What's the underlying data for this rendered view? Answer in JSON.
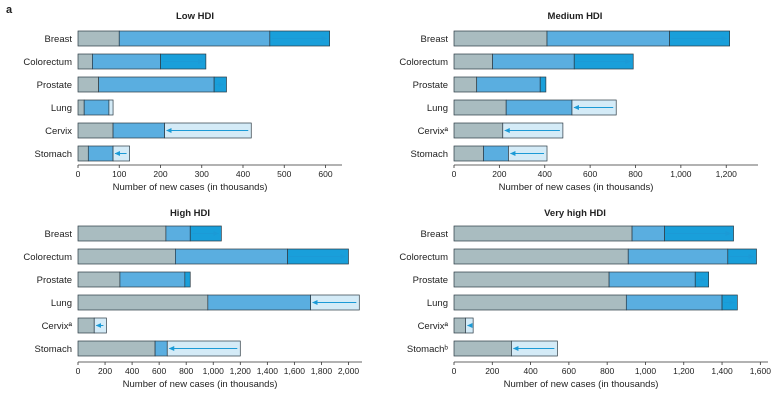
{
  "panel_letter": "a",
  "colors": {
    "seg1_fill": "#a9bcc0",
    "seg2_fill": "#5aaee0",
    "seg3_fill": "#199fda",
    "seg3_light_fill": "#d4ebf7",
    "bar_stroke": "#2b3a44",
    "arrow": "#1b9ad6",
    "axis": "#333333"
  },
  "chart_data": [
    {
      "type": "bar",
      "orientation": "horizontal",
      "title": "Low HDI",
      "categories": [
        "Breast",
        "Colorectum",
        "Prostate",
        "Lung",
        "Cervix",
        "Stomach"
      ],
      "segments": [
        [
          100,
          465,
          610
        ],
        [
          35,
          200,
          310
        ],
        [
          50,
          330,
          360
        ],
        [
          15,
          75,
          85
        ],
        [
          85,
          210,
          420
        ],
        [
          25,
          85,
          125
        ]
      ],
      "arrow_direction": [
        "right",
        "right",
        "right",
        "left",
        "left",
        "left"
      ],
      "xlabel": "Number of new cases (in thousands)",
      "xlim": [
        0,
        640
      ],
      "xticks": [
        0,
        100,
        200,
        300,
        400,
        500,
        600
      ],
      "xtick_labels": [
        "0",
        "100",
        "200",
        "300",
        "400",
        "500",
        "600"
      ],
      "grid": false
    },
    {
      "type": "bar",
      "orientation": "horizontal",
      "title": "Medium HDI",
      "categories": [
        "Breast",
        "Colorectum",
        "Prostate",
        "Lung",
        "Cervixª",
        "Stomach"
      ],
      "segments": [
        [
          410,
          950,
          1215
        ],
        [
          170,
          530,
          790
        ],
        [
          100,
          380,
          405
        ],
        [
          230,
          520,
          715
        ],
        [
          215,
          215,
          480
        ],
        [
          130,
          240,
          410
        ]
      ],
      "arrow_direction": [
        "right",
        "right",
        "right",
        "left",
        "left",
        "left"
      ],
      "xlabel": "Number of new cases (in thousands)",
      "xlim": [
        0,
        1340
      ],
      "xticks": [
        0,
        200,
        400,
        600,
        800,
        1000,
        1200
      ],
      "xtick_labels": [
        "0",
        "200",
        "400",
        "600",
        "800",
        "1,000",
        "1,200"
      ],
      "grid": false
    },
    {
      "type": "bar",
      "orientation": "horizontal",
      "title": "High HDI",
      "categories": [
        "Breast",
        "Colorectum",
        "Prostate",
        "Lung",
        "Cervixª",
        "Stomach"
      ],
      "segments": [
        [
          650,
          830,
          1060
        ],
        [
          720,
          1550,
          2000
        ],
        [
          310,
          790,
          830
        ],
        [
          960,
          1720,
          2080
        ],
        [
          120,
          120,
          210
        ],
        [
          570,
          660,
          1200
        ]
      ],
      "arrow_direction": [
        "right",
        "right",
        "right",
        "left",
        "left",
        "left"
      ],
      "xlabel": "Number of new cases (in thousands)",
      "xlim": [
        0,
        2100
      ],
      "xticks": [
        0,
        200,
        400,
        600,
        800,
        1000,
        1200,
        1400,
        1600,
        1800,
        2000
      ],
      "xtick_labels": [
        "0",
        "200",
        "400",
        "600",
        "800",
        "1,000",
        "1,200",
        "1,400",
        "1,600",
        "1,800",
        "2,000"
      ],
      "grid": false
    },
    {
      "type": "bar",
      "orientation": "horizontal",
      "title": "Very high HDI",
      "categories": [
        "Breast",
        "Colorectum",
        "Prostate",
        "Lung",
        "Cervixª",
        "Stomachᵇ"
      ],
      "segments": [
        [
          930,
          1100,
          1460
        ],
        [
          910,
          1430,
          1580
        ],
        [
          810,
          1260,
          1330
        ],
        [
          900,
          1400,
          1480
        ],
        [
          60,
          60,
          100
        ],
        [
          300,
          300,
          540
        ]
      ],
      "arrow_direction": [
        "right",
        "right",
        "right",
        "right",
        "left",
        "left"
      ],
      "xlabel": "Number of new cases (in thousands)",
      "xlim": [
        0,
        1640
      ],
      "xticks": [
        0,
        200,
        400,
        600,
        800,
        1000,
        1200,
        1400,
        1600
      ],
      "xtick_labels": [
        "0",
        "200",
        "400",
        "600",
        "800",
        "1,000",
        "1,200",
        "1,400",
        "1,600"
      ],
      "grid": false
    }
  ]
}
